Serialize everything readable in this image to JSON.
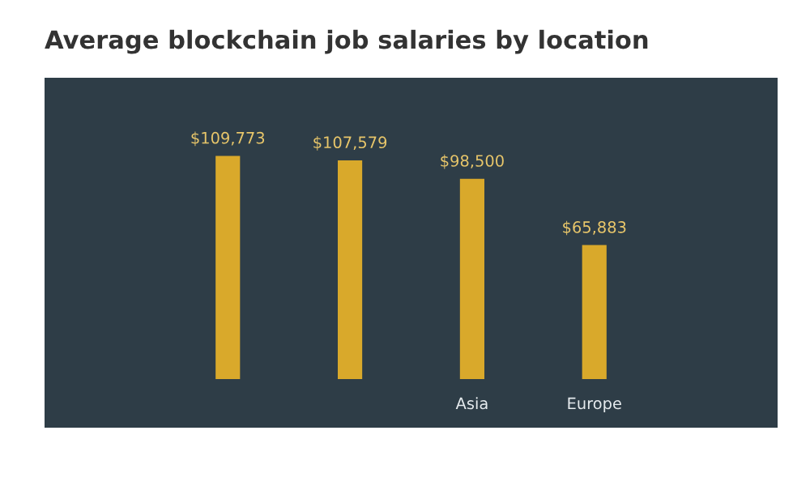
{
  "chart_data": {
    "type": "bar",
    "title": "Average blockchain job salaries by location",
    "categories": [
      null,
      null,
      "Asia",
      "Europe"
    ],
    "values": [
      109773,
      107579,
      98500,
      65883
    ],
    "value_labels": [
      "$109,773",
      "$107,579",
      "$98,500",
      "$65,883"
    ],
    "color": "#d9a92b"
  }
}
